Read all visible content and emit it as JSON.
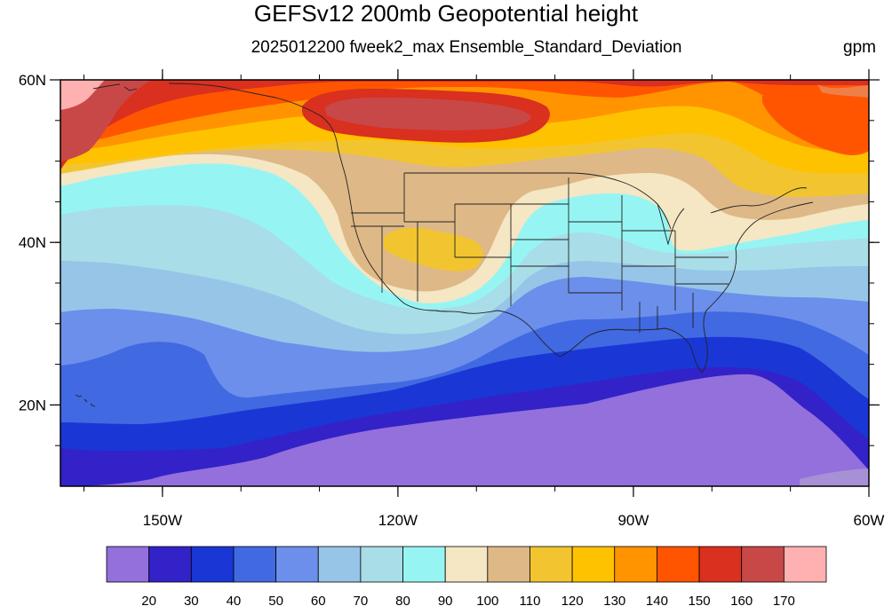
{
  "title": "GEFSv12 200mb Geopotential height",
  "subtitle": "2025012200 fweek2_max Ensemble_Standard_Deviation",
  "units": "gpm",
  "map": {
    "lon_range": [
      -163,
      -60
    ],
    "lat_range": [
      10,
      60
    ],
    "lon_ticks": [
      {
        "value": -150,
        "label": "150W"
      },
      {
        "value": -120,
        "label": "120W"
      },
      {
        "value": -90,
        "label": "90W"
      },
      {
        "value": -60,
        "label": "60W"
      }
    ],
    "lat_ticks": [
      {
        "value": 20,
        "label": "20N"
      },
      {
        "value": 40,
        "label": "40N"
      },
      {
        "value": 60,
        "label": "60N"
      }
    ]
  },
  "colorbar": {
    "colors": [
      "#9370DB",
      "#3322C8",
      "#1A37D6",
      "#4169E1",
      "#6B8FEB",
      "#97C5E8",
      "#A9DDE8",
      "#96F5F3",
      "#F5E6C4",
      "#DEB887",
      "#F2C530",
      "#FFC200",
      "#FF9400",
      "#FF5500",
      "#D93020",
      "#C84848",
      "#FFB0B0"
    ],
    "labels": [
      "20",
      "30",
      "40",
      "50",
      "60",
      "70",
      "80",
      "90",
      "100",
      "110",
      "120",
      "130",
      "140",
      "150",
      "160",
      "170"
    ]
  }
}
